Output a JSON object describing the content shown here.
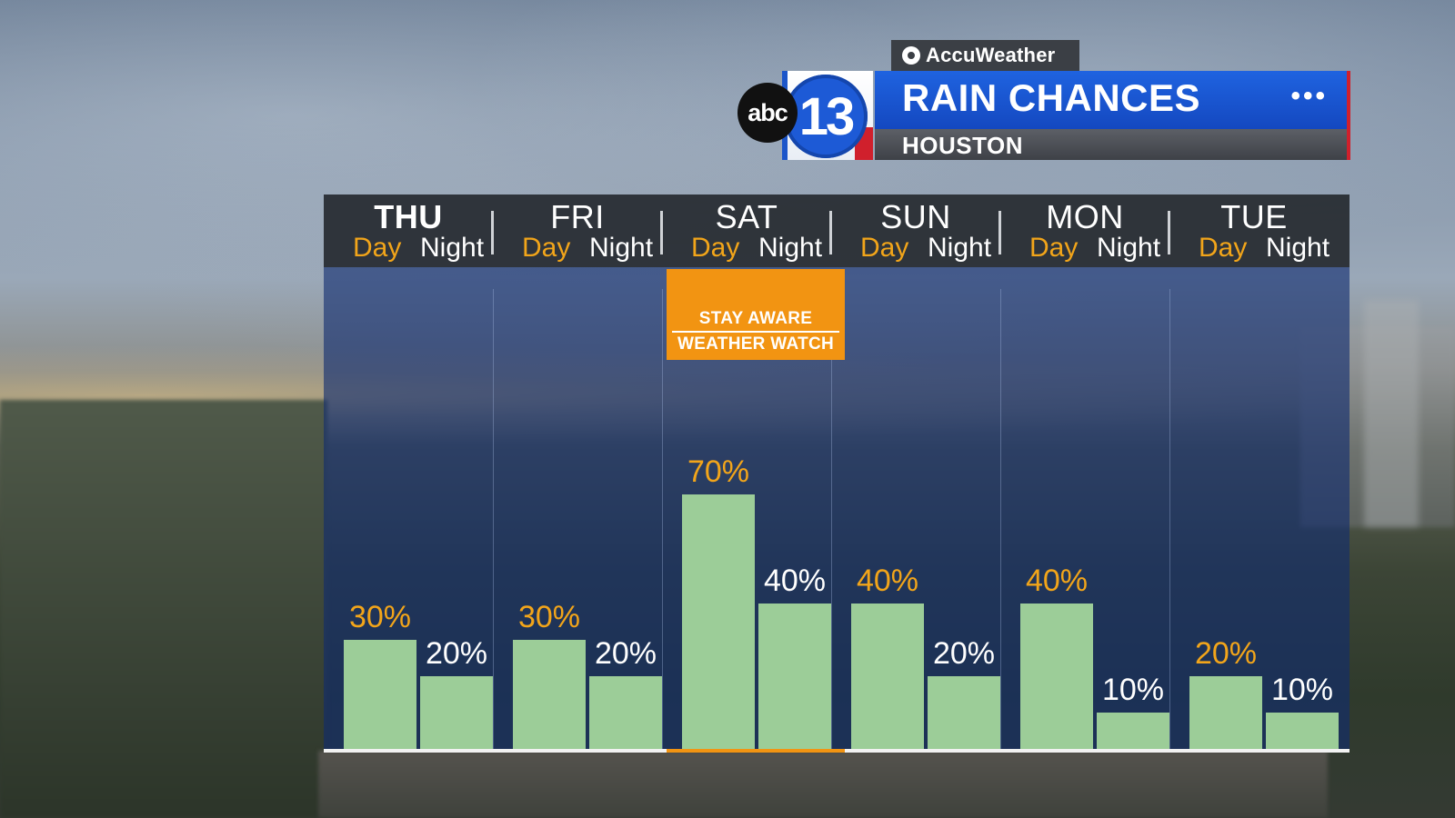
{
  "header": {
    "sponsor": "AccuWeather",
    "station_abc": "abc",
    "station_num": "13",
    "title": "RAIN CHANCES",
    "title_dots": "•••",
    "location": "HOUSTON"
  },
  "alert": {
    "line1": "STAY AWARE",
    "line2": "WEATHER WATCH"
  },
  "colors": {
    "day_label": "#f2a51a",
    "bar": "#9ccd98",
    "alert": "#f29412",
    "title_bar": "#1a55d0"
  },
  "chart_data": {
    "type": "bar",
    "title": "RAIN CHANCES",
    "categories": [
      "THU",
      "FRI",
      "SAT",
      "SUN",
      "MON",
      "TUE"
    ],
    "sublabels": [
      "Day",
      "Night"
    ],
    "ylim": [
      0,
      100
    ],
    "unit": "%",
    "series": [
      {
        "name": "Day",
        "values": [
          30,
          30,
          70,
          40,
          40,
          20
        ]
      },
      {
        "name": "Night",
        "values": [
          20,
          20,
          40,
          20,
          10,
          10
        ]
      }
    ],
    "value_labels": {
      "Day": [
        "30%",
        "30%",
        "70%",
        "40%",
        "40%",
        "20%"
      ],
      "Night": [
        "20%",
        "20%",
        "40%",
        "20%",
        "10%",
        "10%"
      ]
    },
    "highlighted_category": "SAT",
    "grid": false
  }
}
